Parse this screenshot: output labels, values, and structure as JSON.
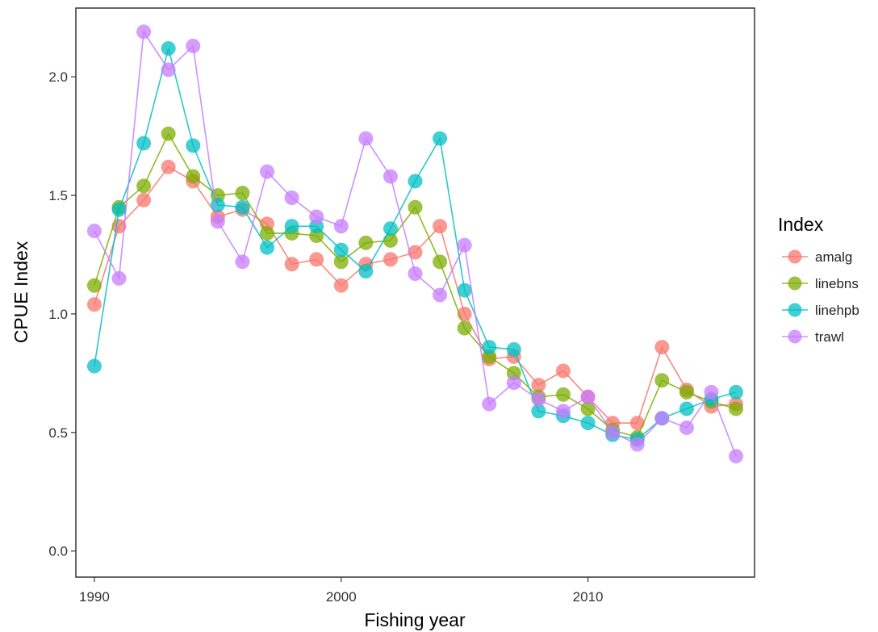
{
  "chart_data": {
    "type": "line",
    "xlabel": "Fishing year",
    "ylabel": "CPUE Index",
    "xlim": [
      1989.25,
      2016.75
    ],
    "ylim": [
      -0.11,
      2.29
    ],
    "x_ticks": [
      1990,
      2000,
      2010
    ],
    "x_tick_labels": [
      "1990",
      "2000",
      "2010"
    ],
    "y_ticks": [
      0,
      0.5,
      1,
      1.5,
      2
    ],
    "y_tick_labels": [
      "0.0",
      "0.5",
      "1.0",
      "1.5",
      "2.0"
    ],
    "grid": false,
    "panel_border": true,
    "legend": {
      "title": "Index",
      "position": "right"
    },
    "x": [
      1990,
      1991,
      1992,
      1993,
      1994,
      1995,
      1996,
      1997,
      1998,
      1999,
      2000,
      2001,
      2002,
      2003,
      2004,
      2005,
      2006,
      2007,
      2008,
      2009,
      2010,
      2011,
      2012,
      2013,
      2014,
      2015,
      2016
    ],
    "series": [
      {
        "name": "amalg",
        "color": "#F8766D",
        "values": [
          1.04,
          1.37,
          1.48,
          1.62,
          1.56,
          1.41,
          1.44,
          1.38,
          1.21,
          1.23,
          1.12,
          1.21,
          1.23,
          1.26,
          1.37,
          1.0,
          0.81,
          0.82,
          0.7,
          0.76,
          0.65,
          0.54,
          0.54,
          0.86,
          0.68,
          0.61,
          0.62
        ]
      },
      {
        "name": "linebns",
        "color": "#7CAE00",
        "values": [
          1.12,
          1.45,
          1.54,
          1.76,
          1.58,
          1.5,
          1.51,
          1.34,
          1.34,
          1.33,
          1.22,
          1.3,
          1.31,
          1.45,
          1.22,
          0.94,
          0.82,
          0.75,
          0.65,
          0.66,
          0.6,
          0.51,
          0.48,
          0.72,
          0.67,
          0.63,
          0.6
        ]
      },
      {
        "name": "linehpb",
        "color": "#00BFC4",
        "values": [
          0.78,
          1.44,
          1.72,
          2.12,
          1.71,
          1.46,
          1.45,
          1.28,
          1.37,
          1.37,
          1.27,
          1.18,
          1.36,
          1.56,
          1.74,
          1.1,
          0.86,
          0.85,
          0.59,
          0.57,
          0.54,
          0.49,
          0.47,
          0.56,
          0.6,
          0.64,
          0.67
        ]
      },
      {
        "name": "trawl",
        "color": "#C77CFF",
        "values": [
          1.35,
          1.15,
          2.19,
          2.03,
          2.13,
          1.39,
          1.22,
          1.6,
          1.49,
          1.41,
          1.37,
          1.74,
          1.58,
          1.17,
          1.08,
          1.29,
          0.62,
          0.71,
          0.64,
          0.59,
          0.65,
          0.5,
          0.45,
          0.56,
          0.52,
          0.67,
          0.4
        ]
      }
    ]
  }
}
